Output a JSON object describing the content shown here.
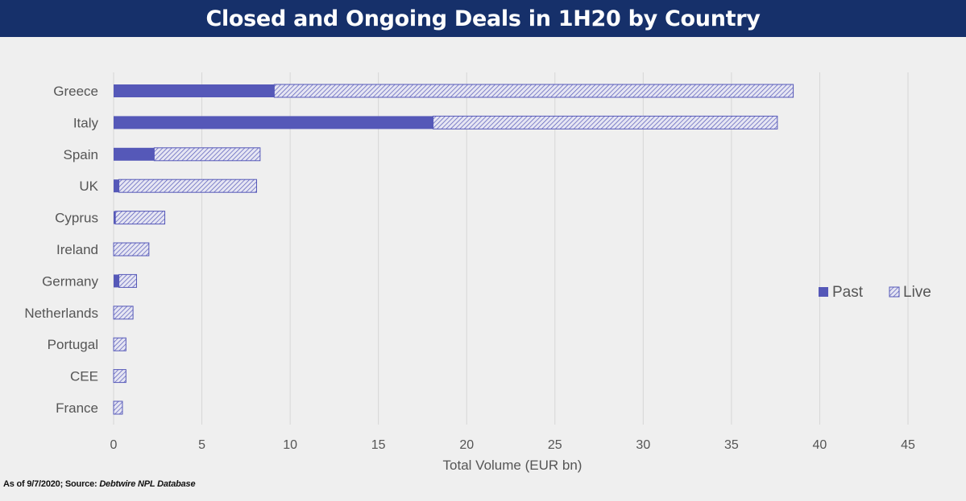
{
  "header": {
    "title": "Closed and Ongoing Deals in 1H20 by Country"
  },
  "footer": {
    "as_of": "As of 9/7/2020; Source: ",
    "source_name": "Debtwire NPL Database"
  },
  "colors": {
    "title_bg": "#16306a",
    "past": "#5558b8",
    "live": "#5558b8",
    "grid": "#d6d6d6",
    "text": "#555555"
  },
  "chart_data": {
    "type": "bar",
    "orientation": "horizontal",
    "stacked": true,
    "title": "Closed and Ongoing Deals in 1H20 by Country",
    "xlabel": "Total Volume (EUR bn)",
    "ylabel": "",
    "xlim": [
      0,
      45
    ],
    "xticks": [
      0,
      5,
      10,
      15,
      20,
      25,
      30,
      35,
      40,
      45
    ],
    "grid": true,
    "legend_position": "right",
    "categories": [
      "Greece",
      "Italy",
      "Spain",
      "UK",
      "Cyprus",
      "Ireland",
      "Germany",
      "Netherlands",
      "Portugal",
      "CEE",
      "France"
    ],
    "series": [
      {
        "name": "Past",
        "pattern": "solid",
        "values": [
          9.1,
          18.1,
          2.3,
          0.3,
          0.1,
          0.0,
          0.3,
          0.0,
          0.0,
          0.0,
          0.0
        ]
      },
      {
        "name": "Live",
        "pattern": "hatched",
        "values": [
          29.4,
          19.5,
          6.0,
          7.8,
          2.8,
          2.0,
          1.0,
          1.1,
          0.7,
          0.7,
          0.5
        ]
      }
    ]
  }
}
